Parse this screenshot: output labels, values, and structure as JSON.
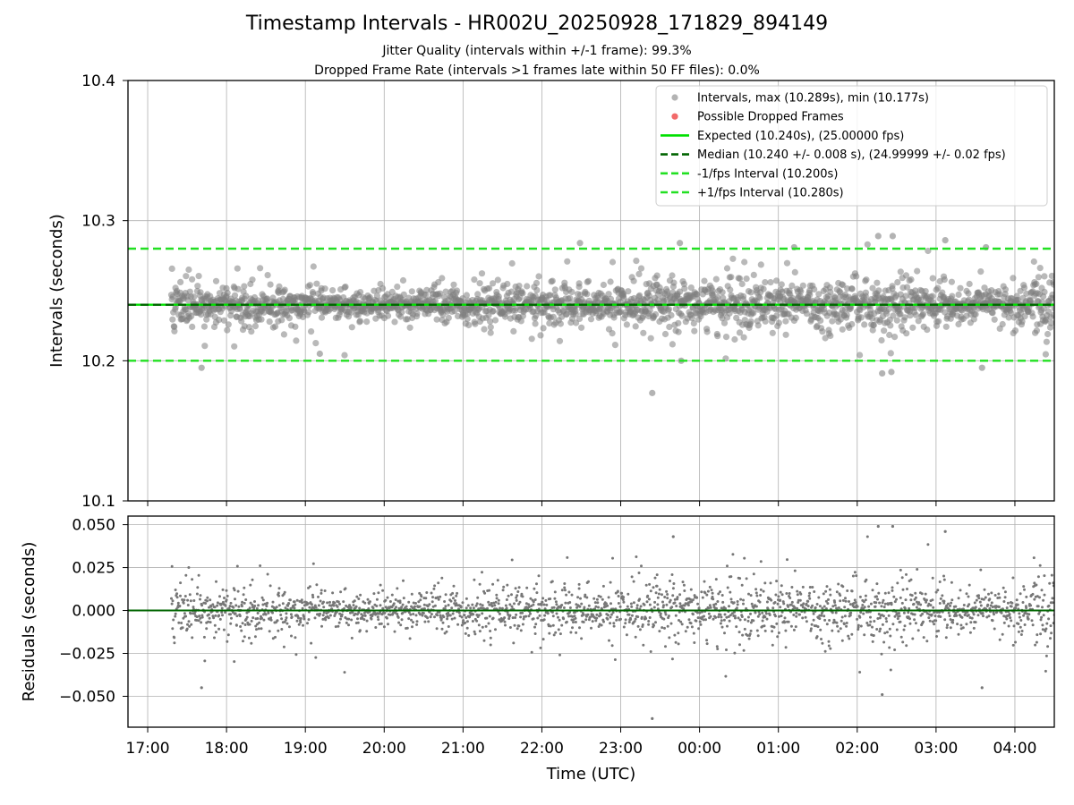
{
  "figure": {
    "title": "Timestamp Intervals - HR002U_20250928_171829_894149",
    "subtitle_1": "Jitter Quality (intervals within +/-1 frame): 99.3%",
    "subtitle_2": "Dropped Frame Rate (intervals >1 frames late within 50 FF files): 0.0%"
  },
  "chart_data": [
    {
      "type": "scatter",
      "panel": "intervals",
      "ylabel": "Intervals (seconds)",
      "xlabel": "",
      "xlim": [
        "16:45",
        "04:30"
      ],
      "ylim": [
        10.1,
        10.4
      ],
      "y_ticks": [
        "10.1",
        "10.2",
        "10.3",
        "10.4"
      ],
      "grid": true,
      "legend_position": "top-right",
      "series": [
        {
          "name": "Intervals, max (10.289s), min (10.177s)",
          "kind": "scatter",
          "color": "#808080",
          "time_range": [
            "17:18",
            "04:30"
          ],
          "center": 10.24,
          "max": 10.289,
          "min": 10.177,
          "sample_points": [
            {
              "x": "17:41",
              "y": 10.195
            },
            {
              "x": "23:24",
              "y": 10.177
            },
            {
              "x": "02:16",
              "y": 10.289
            },
            {
              "x": "02:27",
              "y": 10.289
            },
            {
              "x": "02:19",
              "y": 10.191
            },
            {
              "x": "02:26",
              "y": 10.192
            },
            {
              "x": "03:07",
              "y": 10.286
            },
            {
              "x": "23:45",
              "y": 10.284
            },
            {
              "x": "22:29",
              "y": 10.284
            },
            {
              "x": "01:12",
              "y": 10.281
            },
            {
              "x": "03:35",
              "y": 10.195
            },
            {
              "x": "23:46",
              "y": 10.2
            },
            {
              "x": "03:38",
              "y": 10.281
            },
            {
              "x": "19:11",
              "y": 10.205
            }
          ]
        },
        {
          "name": "Possible Dropped Frames",
          "kind": "scatter",
          "color": "#f05050",
          "points": []
        },
        {
          "name": "Expected (10.240s), (25.00000 fps)",
          "kind": "hline",
          "y": 10.24,
          "color": "#00e000",
          "style": "solid"
        },
        {
          "name": "Median (10.240 +/- 0.008 s), (24.99999 +/- 0.02 fps)",
          "kind": "hline",
          "y": 10.24,
          "color": "#006400",
          "style": "dashed"
        },
        {
          "name": "-1/fps Interval (10.200s)",
          "kind": "hline",
          "y": 10.2,
          "color": "#22e022",
          "style": "dashed"
        },
        {
          "name": "+1/fps Interval (10.280s)",
          "kind": "hline",
          "y": 10.28,
          "color": "#22e022",
          "style": "dashed"
        }
      ]
    },
    {
      "type": "scatter",
      "panel": "residuals",
      "ylabel": "Residuals (seconds)",
      "xlabel": "Time (UTC)",
      "xlim": [
        "16:45",
        "04:30"
      ],
      "ylim": [
        -0.068,
        0.055
      ],
      "y_ticks": [
        "−0.050",
        "−0.025",
        "0.000",
        "0.025",
        "0.050"
      ],
      "x_ticks": [
        "17:00",
        "18:00",
        "19:00",
        "20:00",
        "21:00",
        "22:00",
        "23:00",
        "00:00",
        "01:00",
        "02:00",
        "03:00",
        "04:00"
      ],
      "grid": true,
      "series": [
        {
          "kind": "scatter",
          "color": "#777777",
          "time_range": [
            "17:18",
            "04:30"
          ],
          "center": 0.0,
          "max": 0.049,
          "min": -0.063,
          "sample_points": [
            {
              "x": "23:24",
              "y": -0.063
            },
            {
              "x": "02:16",
              "y": 0.049
            },
            {
              "x": "02:27",
              "y": 0.049
            },
            {
              "x": "02:19",
              "y": -0.049
            },
            {
              "x": "17:41",
              "y": -0.045
            },
            {
              "x": "03:07",
              "y": 0.046
            },
            {
              "x": "23:40",
              "y": 0.043
            },
            {
              "x": "03:35",
              "y": -0.045
            }
          ]
        },
        {
          "kind": "hline",
          "y": 0.0,
          "color": "#006400",
          "style": "solid"
        }
      ]
    }
  ]
}
